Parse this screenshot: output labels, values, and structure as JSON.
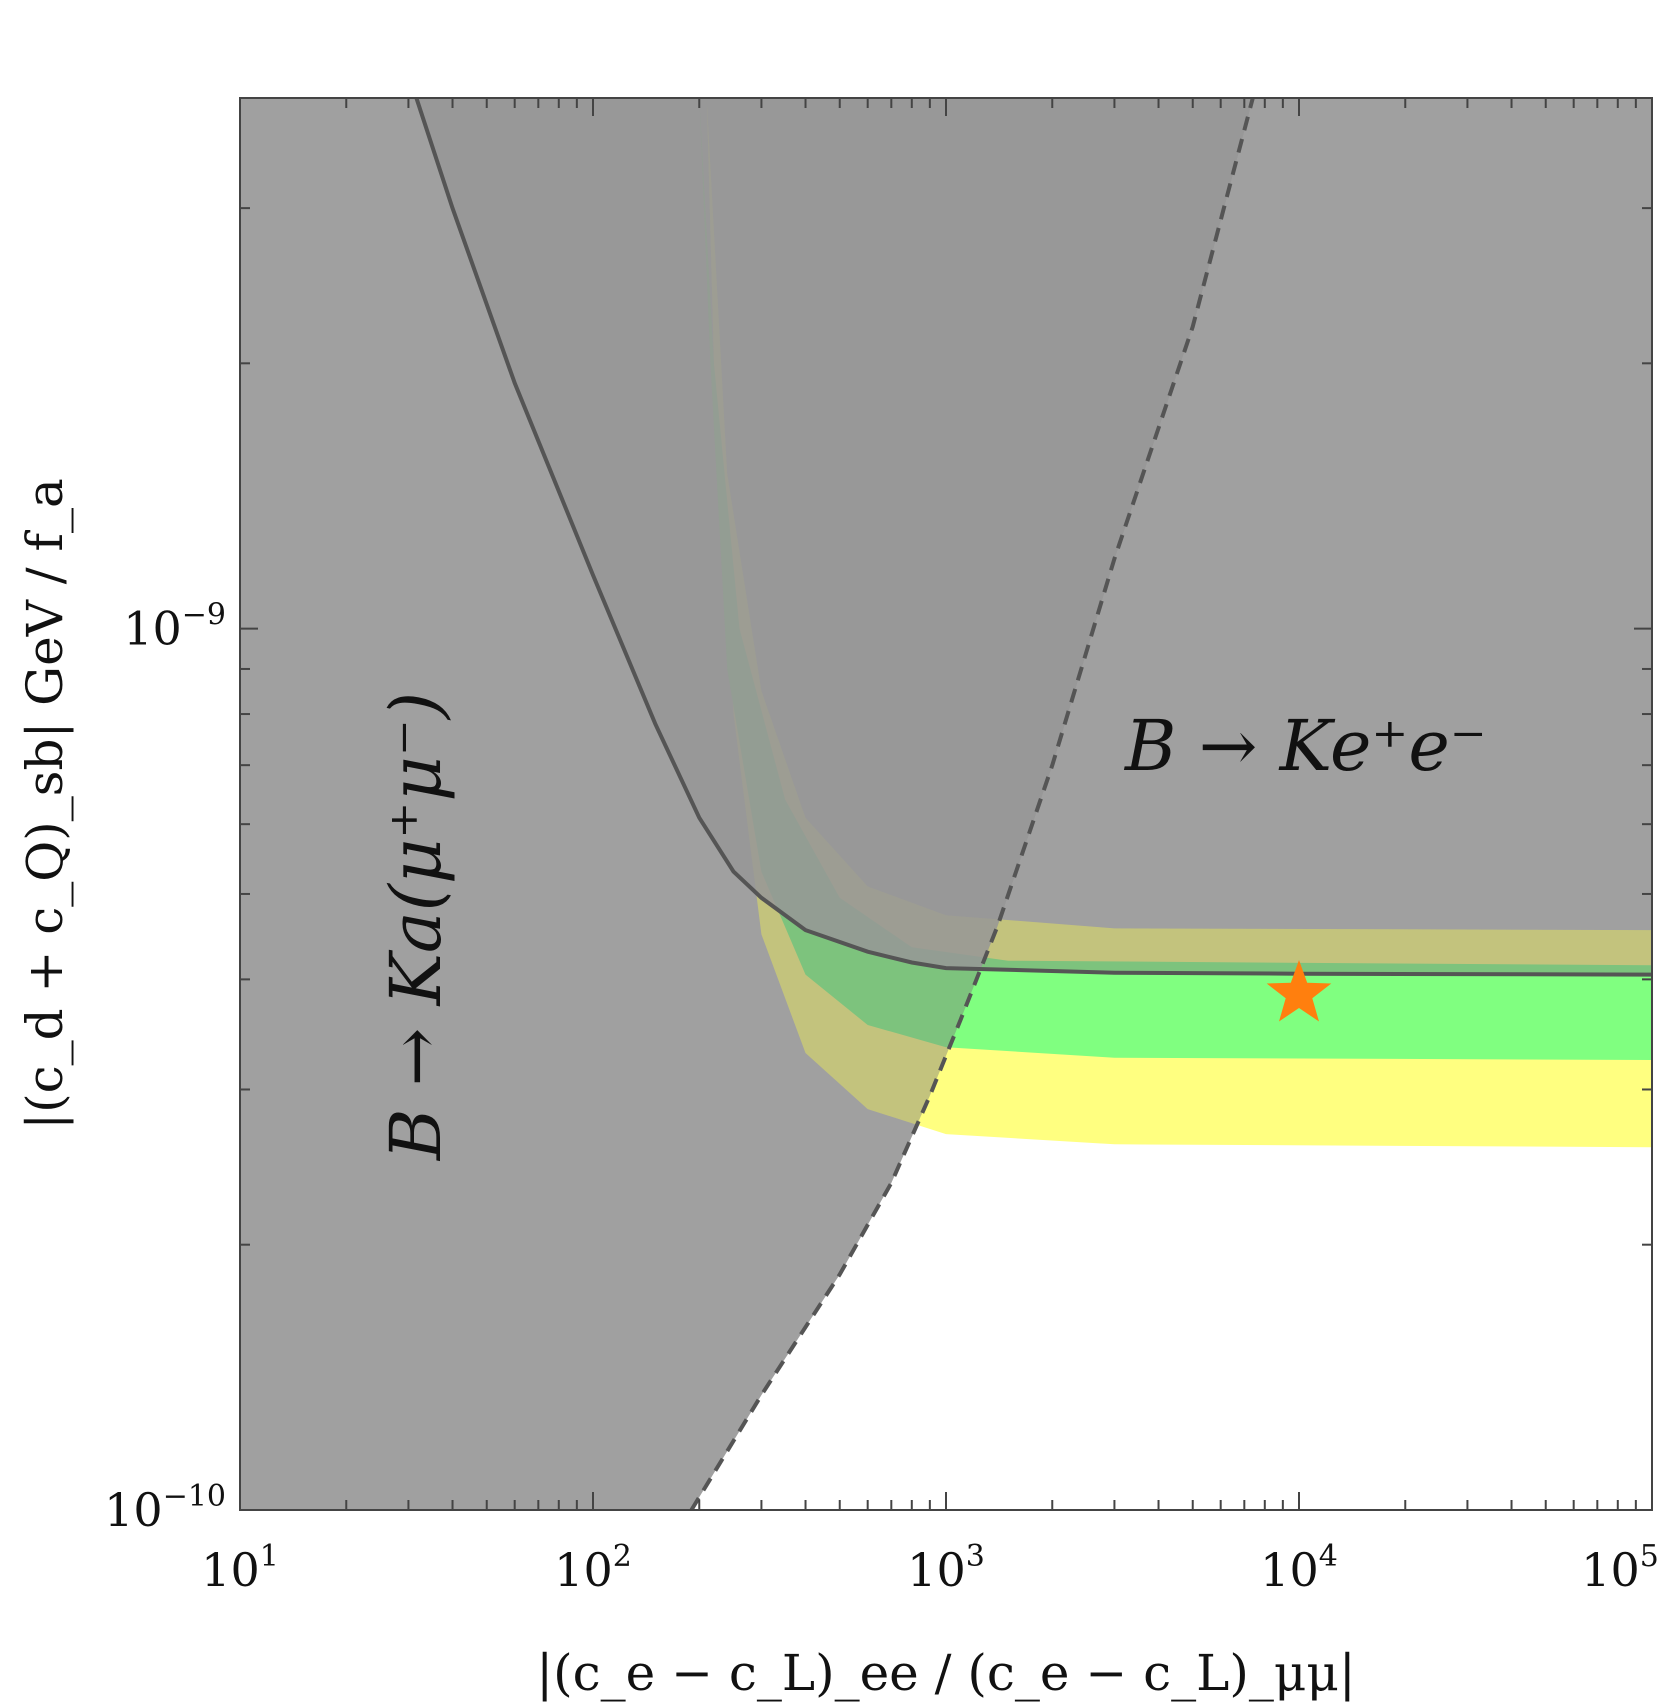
{
  "chart_data": {
    "type": "area",
    "title": "",
    "xlabel": "|(c_e − c_L)_ee / (c_e − c_L)_μμ|",
    "ylabel": "|(c_d + c_Q)_sb| GeV / f_a",
    "xscale": "log",
    "yscale": "log",
    "xlim": [
      10,
      100000
    ],
    "ylim": [
      1e-10,
      4e-09
    ],
    "grid": false,
    "legend": "none",
    "x_tick_labels": [
      {
        "value": 10,
        "base": "10",
        "exp": "1"
      },
      {
        "value": 100,
        "base": "10",
        "exp": "2"
      },
      {
        "value": 1000,
        "base": "10",
        "exp": "3"
      },
      {
        "value": 10000,
        "base": "10",
        "exp": "4"
      },
      {
        "value": 100000,
        "base": "10",
        "exp": "5"
      }
    ],
    "y_tick_labels": [
      {
        "value": 1e-10,
        "base": "10",
        "exp": "−10"
      },
      {
        "value": 1e-09,
        "base": "10",
        "exp": "−9"
      }
    ],
    "annotations": {
      "kee": "B → Ke⁺e⁻",
      "kmumu": "B → Ka(μ⁺μ⁻)"
    },
    "colors": {
      "excluded_gray": "#bfbfbf",
      "overlap_gray": "#9b9b9b",
      "band_yellow": "#ffff80",
      "band_green": "#80ff80",
      "curve": "#555555",
      "star": "#ff7f0e"
    },
    "regions": {
      "kmumu_boundary_solid": [
        [
          31.6,
          4e-09
        ],
        [
          40,
          3e-09
        ],
        [
          60,
          1.9e-09
        ],
        [
          100,
          1.15e-09
        ],
        [
          150,
          7.8e-10
        ],
        [
          200,
          6.1e-10
        ],
        [
          250,
          5.3e-10
        ],
        [
          300,
          4.95e-10
        ],
        [
          400,
          4.55e-10
        ],
        [
          600,
          4.3e-10
        ],
        [
          800,
          4.18e-10
        ],
        [
          1000,
          4.12e-10
        ],
        [
          3000,
          4.07e-10
        ],
        [
          10000,
          4.06e-10
        ],
        [
          100000,
          4.05e-10
        ]
      ],
      "kee_boundary_dashed": [
        [
          190,
          1e-10
        ],
        [
          300,
          1.35e-10
        ],
        [
          500,
          1.85e-10
        ],
        [
          700,
          2.35e-10
        ],
        [
          900,
          2.95e-10
        ],
        [
          1100,
          3.6e-10
        ],
        [
          1400,
          4.6e-10
        ],
        [
          2000,
          7e-10
        ],
        [
          3000,
          1.2e-09
        ],
        [
          5000,
          2.2e-09
        ],
        [
          7400,
          4e-09
        ]
      ],
      "yellow_band": {
        "lower": [
          [
            210,
            4e-09
          ],
          [
            220,
            2e-09
          ],
          [
            250,
            8e-10
          ],
          [
            300,
            4.5e-10
          ],
          [
            400,
            3.3e-10
          ],
          [
            600,
            2.85e-10
          ],
          [
            1000,
            2.67e-10
          ],
          [
            3000,
            2.6e-10
          ],
          [
            100000,
            2.58e-10
          ]
        ],
        "upper": [
          [
            210,
            4e-09
          ],
          [
            240,
            1.5e-09
          ],
          [
            300,
            8.5e-10
          ],
          [
            400,
            6.1e-10
          ],
          [
            600,
            5.1e-10
          ],
          [
            1000,
            4.73e-10
          ],
          [
            3000,
            4.57e-10
          ],
          [
            100000,
            4.55e-10
          ]
        ]
      },
      "green_band": {
        "lower": [
          [
            200,
            4e-09
          ],
          [
            215,
            2e-09
          ],
          [
            240,
            9e-10
          ],
          [
            300,
            5.3e-10
          ],
          [
            400,
            4.05e-10
          ],
          [
            600,
            3.55e-10
          ],
          [
            1000,
            3.35e-10
          ],
          [
            3000,
            3.26e-10
          ],
          [
            100000,
            3.24e-10
          ]
        ],
        "upper": [
          [
            200,
            4e-09
          ],
          [
            220,
            2e-09
          ],
          [
            260,
            1e-09
          ],
          [
            350,
            6.4e-10
          ],
          [
            500,
            4.95e-10
          ],
          [
            800,
            4.35e-10
          ],
          [
            1500,
            4.2e-10
          ],
          [
            100000,
            4.15e-10
          ]
        ]
      }
    },
    "star_point": {
      "x": 10000,
      "y": 3.85e-10
    }
  }
}
